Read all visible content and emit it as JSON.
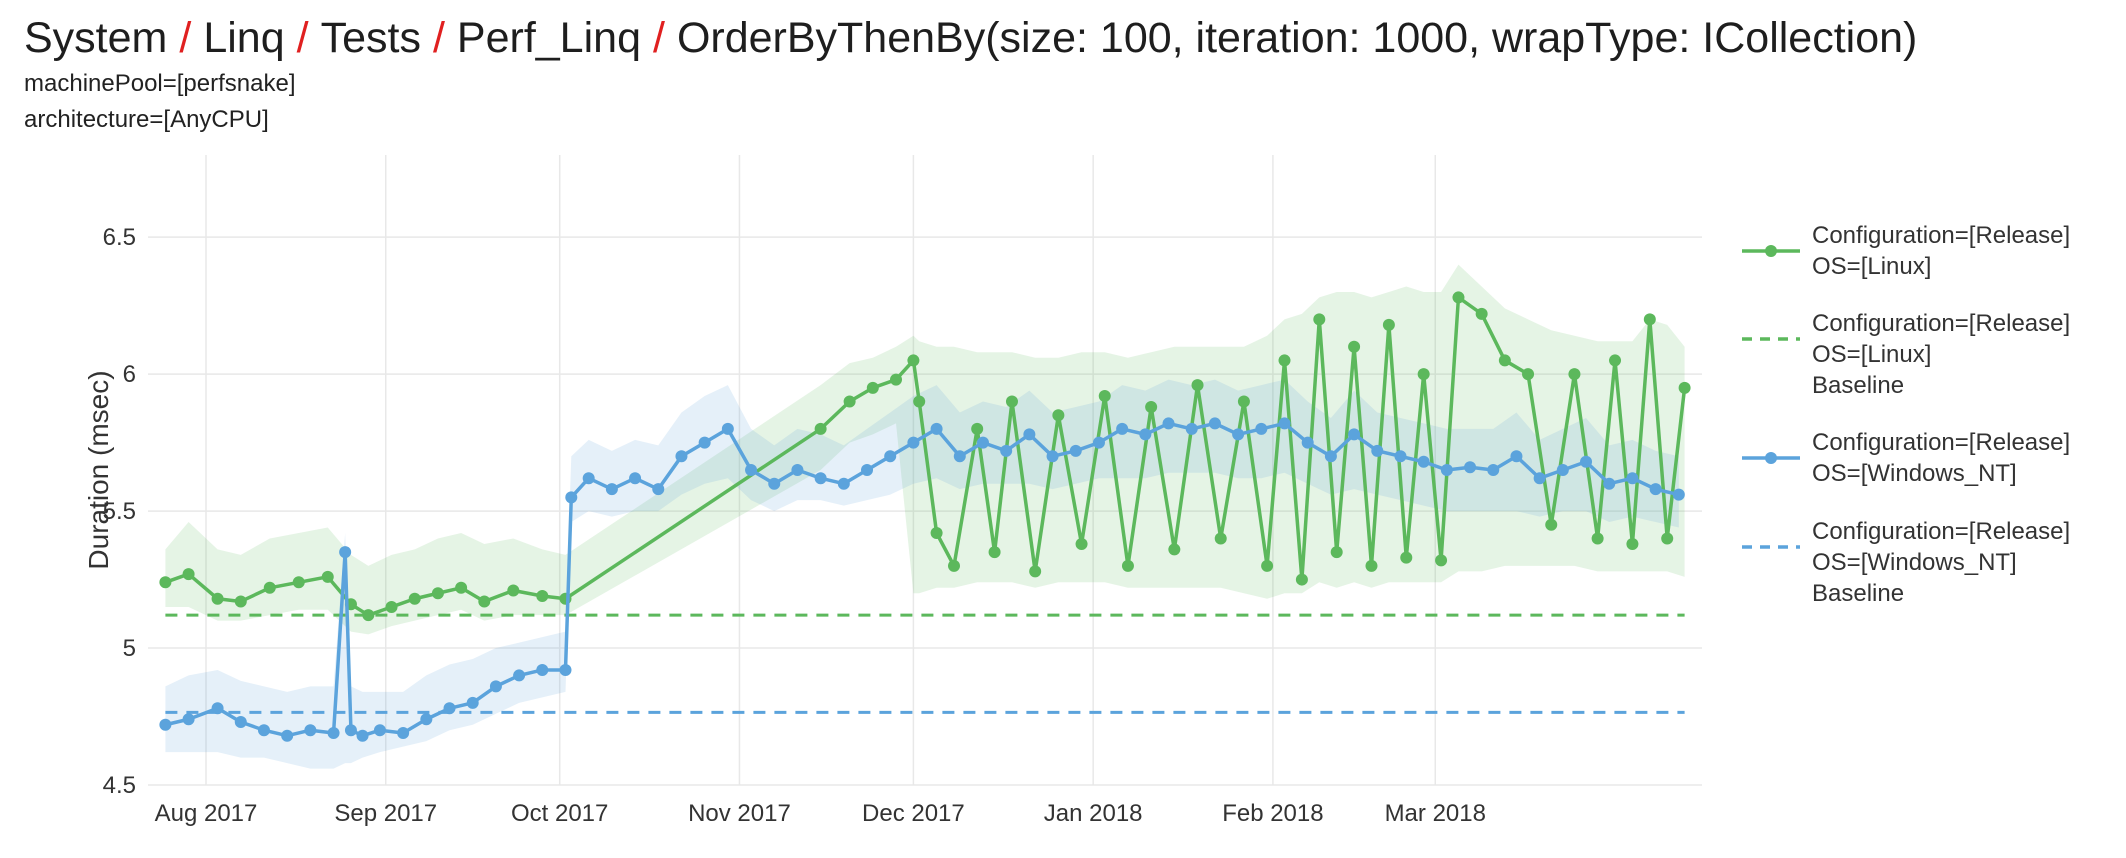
{
  "breadcrumb": {
    "items": [
      "System",
      "Linq",
      "Tests",
      "Perf_Linq",
      "OrderByThenBy(size: 100, iteration: 1000, wrapType: ICollection)"
    ],
    "separator": "/"
  },
  "filters": [
    "machinePool=[perfsnake]",
    "architecture=[AnyCPU]"
  ],
  "colors": {
    "linux": "#5cb85c",
    "windows": "#5ba3dc",
    "separator": "#e02020",
    "grid": "#e8e8e8"
  },
  "chart_data": {
    "type": "line",
    "xlabel": "",
    "ylabel": "Duration (msec)",
    "xlim": [
      "2017-07-22",
      "2018-04-16"
    ],
    "ylim": [
      4.5,
      6.8
    ],
    "yticks": [
      4.5,
      5,
      5.5,
      6,
      6.5
    ],
    "ytick_labels": [
      "4.5",
      "5",
      "5.5",
      "6",
      "6.5"
    ],
    "xticks": [
      "2017-08-01",
      "2017-09-01",
      "2017-10-01",
      "2017-11-01",
      "2017-12-01",
      "2018-01-01",
      "2018-02-01",
      "2018-03-01"
    ],
    "xtick_labels": [
      "Aug 2017",
      "Sep 2017",
      "Oct 2017",
      "Nov 2017",
      "Dec 2017",
      "Jan 2018",
      "Feb 2018",
      "Mar 2018"
    ],
    "grid": true,
    "legend_position": "right",
    "series": [
      {
        "name": "Configuration=[Release] OS=[Linux]",
        "legend_lines": [
          "Configuration=[Release]",
          "OS=[Linux]"
        ],
        "style": "solid-markers",
        "color": "#5cb85c",
        "x": [
          "2017-07-25",
          "2017-07-29",
          "2017-08-03",
          "2017-08-07",
          "2017-08-12",
          "2017-08-17",
          "2017-08-22",
          "2017-08-26",
          "2017-08-29",
          "2017-09-02",
          "2017-09-06",
          "2017-09-10",
          "2017-09-14",
          "2017-09-18",
          "2017-09-23",
          "2017-09-28",
          "2017-10-02",
          "2017-11-15",
          "2017-11-20",
          "2017-11-24",
          "2017-11-28",
          "2017-12-01",
          "2017-12-02",
          "2017-12-05",
          "2017-12-08",
          "2017-12-12",
          "2017-12-15",
          "2017-12-18",
          "2017-12-22",
          "2017-12-26",
          "2017-12-30",
          "2018-01-03",
          "2018-01-07",
          "2018-01-11",
          "2018-01-15",
          "2018-01-19",
          "2018-01-23",
          "2018-01-27",
          "2018-01-31",
          "2018-02-03",
          "2018-02-06",
          "2018-02-09",
          "2018-02-12",
          "2018-02-15",
          "2018-02-18",
          "2018-02-21",
          "2018-02-24",
          "2018-02-27",
          "2018-03-02",
          "2018-03-05",
          "2018-03-09",
          "2018-03-13",
          "2018-03-17",
          "2018-03-21",
          "2018-03-25",
          "2018-03-29",
          "2018-04-01",
          "2018-04-04",
          "2018-04-07",
          "2018-04-10",
          "2018-04-13"
        ],
        "y": [
          5.24,
          5.27,
          5.18,
          5.17,
          5.22,
          5.24,
          5.26,
          5.16,
          5.12,
          5.15,
          5.18,
          5.2,
          5.22,
          5.17,
          5.21,
          5.19,
          5.18,
          5.8,
          5.9,
          5.95,
          5.98,
          6.05,
          5.9,
          5.42,
          5.3,
          5.8,
          5.35,
          5.9,
          5.28,
          5.85,
          5.38,
          5.92,
          5.3,
          5.88,
          5.36,
          5.96,
          5.4,
          5.9,
          5.3,
          6.05,
          5.25,
          6.2,
          5.35,
          6.1,
          5.3,
          6.18,
          5.33,
          6.0,
          5.32,
          6.28,
          6.22,
          6.05,
          6.0,
          5.45,
          6.0,
          5.4,
          6.05,
          5.38,
          6.2,
          5.4,
          5.95
        ],
        "range_low": [
          5.15,
          5.15,
          5.1,
          5.1,
          5.12,
          5.14,
          5.14,
          5.06,
          5.05,
          5.08,
          5.1,
          5.12,
          5.14,
          5.1,
          5.12,
          5.12,
          5.12,
          5.65,
          5.75,
          5.78,
          5.82,
          5.2,
          5.2,
          5.22,
          5.22,
          5.24,
          5.24,
          5.24,
          5.22,
          5.24,
          5.24,
          5.24,
          5.22,
          5.22,
          5.22,
          5.22,
          5.22,
          5.2,
          5.18,
          5.2,
          5.2,
          5.24,
          5.22,
          5.24,
          5.22,
          5.24,
          5.24,
          5.24,
          5.24,
          5.28,
          5.28,
          5.3,
          5.3,
          5.3,
          5.3,
          5.28,
          5.28,
          5.28,
          5.28,
          5.28,
          5.26
        ],
        "range_high": [
          5.36,
          5.46,
          5.36,
          5.34,
          5.4,
          5.42,
          5.44,
          5.34,
          5.3,
          5.34,
          5.36,
          5.4,
          5.42,
          5.38,
          5.4,
          5.36,
          5.34,
          5.96,
          6.04,
          6.06,
          6.1,
          6.14,
          6.12,
          6.1,
          6.1,
          6.08,
          6.08,
          6.08,
          6.06,
          6.06,
          6.08,
          6.08,
          6.06,
          6.08,
          6.1,
          6.1,
          6.1,
          6.1,
          6.14,
          6.2,
          6.22,
          6.28,
          6.3,
          6.3,
          6.28,
          6.3,
          6.32,
          6.3,
          6.3,
          6.4,
          6.32,
          6.24,
          6.2,
          6.16,
          6.14,
          6.12,
          6.12,
          6.12,
          6.2,
          6.18,
          6.1
        ]
      },
      {
        "name": "Configuration=[Release] OS=[Linux] Baseline",
        "legend_lines": [
          "Configuration=[Release]",
          "OS=[Linux]",
          "Baseline"
        ],
        "style": "dashed",
        "color": "#5cb85c",
        "x": [
          "2017-07-25",
          "2018-04-13"
        ],
        "y": [
          5.12,
          5.12
        ]
      },
      {
        "name": "Configuration=[Release] OS=[Windows_NT]",
        "legend_lines": [
          "Configuration=[Release]",
          "OS=[Windows_NT]"
        ],
        "style": "solid-markers",
        "color": "#5ba3dc",
        "x": [
          "2017-07-25",
          "2017-07-29",
          "2017-08-03",
          "2017-08-07",
          "2017-08-11",
          "2017-08-15",
          "2017-08-19",
          "2017-08-23",
          "2017-08-25",
          "2017-08-26",
          "2017-08-28",
          "2017-08-31",
          "2017-09-04",
          "2017-09-08",
          "2017-09-12",
          "2017-09-16",
          "2017-09-20",
          "2017-09-24",
          "2017-09-28",
          "2017-10-02",
          "2017-10-03",
          "2017-10-06",
          "2017-10-10",
          "2017-10-14",
          "2017-10-18",
          "2017-10-22",
          "2017-10-26",
          "2017-10-30",
          "2017-11-03",
          "2017-11-07",
          "2017-11-11",
          "2017-11-15",
          "2017-11-19",
          "2017-11-23",
          "2017-11-27",
          "2017-12-01",
          "2017-12-05",
          "2017-12-09",
          "2017-12-13",
          "2017-12-17",
          "2017-12-21",
          "2017-12-25",
          "2017-12-29",
          "2018-01-02",
          "2018-01-06",
          "2018-01-10",
          "2018-01-14",
          "2018-01-18",
          "2018-01-22",
          "2018-01-26",
          "2018-01-30",
          "2018-02-03",
          "2018-02-07",
          "2018-02-11",
          "2018-02-15",
          "2018-02-19",
          "2018-02-23",
          "2018-02-27",
          "2018-03-03",
          "2018-03-07",
          "2018-03-11",
          "2018-03-15",
          "2018-03-19",
          "2018-03-23",
          "2018-03-27",
          "2018-03-31",
          "2018-04-04",
          "2018-04-08",
          "2018-04-12"
        ],
        "y": [
          4.72,
          4.74,
          4.78,
          4.73,
          4.7,
          4.68,
          4.7,
          4.69,
          5.35,
          4.7,
          4.68,
          4.7,
          4.69,
          4.74,
          4.78,
          4.8,
          4.86,
          4.9,
          4.92,
          4.92,
          5.55,
          5.62,
          5.58,
          5.62,
          5.58,
          5.7,
          5.75,
          5.8,
          5.65,
          5.6,
          5.65,
          5.62,
          5.6,
          5.65,
          5.7,
          5.75,
          5.8,
          5.7,
          5.75,
          5.72,
          5.78,
          5.7,
          5.72,
          5.75,
          5.8,
          5.78,
          5.82,
          5.8,
          5.82,
          5.78,
          5.8,
          5.82,
          5.75,
          5.7,
          5.78,
          5.72,
          5.7,
          5.68,
          5.65,
          5.66,
          5.65,
          5.7,
          5.62,
          5.65,
          5.68,
          5.6,
          5.62,
          5.58,
          5.56
        ],
        "range_low": [
          4.62,
          4.62,
          4.62,
          4.6,
          4.6,
          4.58,
          4.56,
          4.56,
          4.58,
          4.58,
          4.6,
          4.62,
          4.64,
          4.66,
          4.7,
          4.72,
          4.76,
          4.8,
          4.82,
          4.84,
          5.46,
          5.5,
          5.48,
          5.5,
          5.5,
          5.56,
          5.6,
          5.62,
          5.54,
          5.5,
          5.54,
          5.54,
          5.52,
          5.54,
          5.56,
          5.6,
          5.62,
          5.58,
          5.6,
          5.6,
          5.6,
          5.58,
          5.6,
          5.62,
          5.62,
          5.62,
          5.64,
          5.64,
          5.64,
          5.62,
          5.62,
          5.64,
          5.6,
          5.56,
          5.58,
          5.56,
          5.54,
          5.52,
          5.5,
          5.5,
          5.5,
          5.5,
          5.48,
          5.5,
          5.5,
          5.46,
          5.48,
          5.46,
          5.44
        ],
        "range_high": [
          4.86,
          4.9,
          4.92,
          4.88,
          4.86,
          4.84,
          4.86,
          4.86,
          5.42,
          4.86,
          4.84,
          4.84,
          4.84,
          4.9,
          4.94,
          4.96,
          5.0,
          5.02,
          5.04,
          5.06,
          5.7,
          5.76,
          5.72,
          5.76,
          5.74,
          5.86,
          5.92,
          5.96,
          5.8,
          5.74,
          5.8,
          5.78,
          5.74,
          5.8,
          5.86,
          5.92,
          5.96,
          5.86,
          5.9,
          5.88,
          5.94,
          5.86,
          5.88,
          5.9,
          5.96,
          5.94,
          5.98,
          5.96,
          5.98,
          5.94,
          5.96,
          5.98,
          5.9,
          5.84,
          5.94,
          5.86,
          5.84,
          5.82,
          5.8,
          5.8,
          5.8,
          5.86,
          5.76,
          5.8,
          5.84,
          5.74,
          5.76,
          5.72,
          5.7
        ]
      },
      {
        "name": "Configuration=[Release] OS=[Windows_NT] Baseline",
        "legend_lines": [
          "Configuration=[Release]",
          "OS=[Windows_NT]",
          "Baseline"
        ],
        "style": "dashed",
        "color": "#5ba3dc",
        "x": [
          "2017-07-25",
          "2018-04-13"
        ],
        "y": [
          4.765,
          4.765
        ]
      }
    ]
  }
}
